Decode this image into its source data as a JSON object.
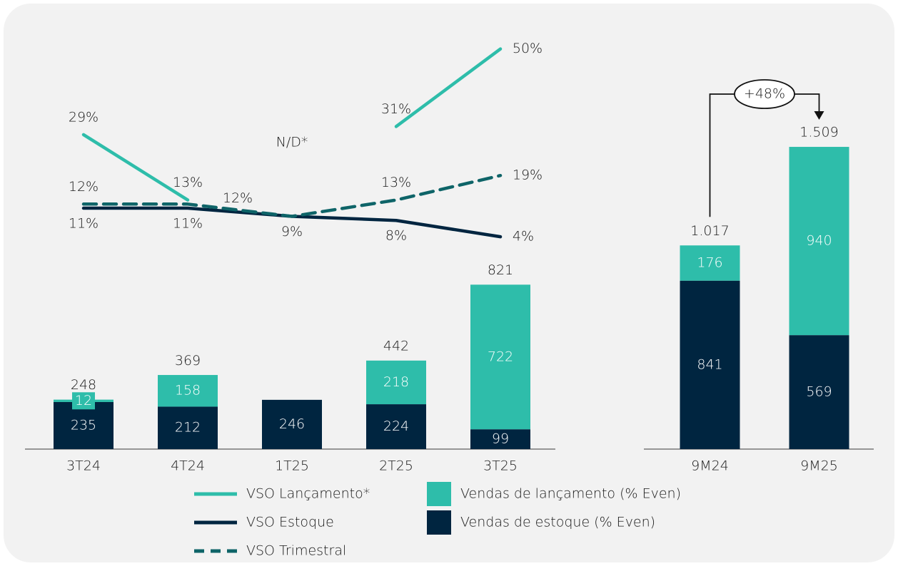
{
  "chart_data": [
    {
      "type": "bar_line",
      "categories": [
        "3T24",
        "4T24",
        "1T25",
        "2T25",
        "3T25"
      ],
      "ylim": [
        0,
        2100
      ],
      "y2lim": [
        -48,
        55
      ],
      "series": [
        {
          "name": "Vendas de estoque (% Even)",
          "type": "bar",
          "color": "#002540",
          "values": [
            235,
            212,
            246,
            224,
            99
          ]
        },
        {
          "name": "Vendas de lançamento (% Even)",
          "type": "bar",
          "color": "#2ebdaa",
          "values": [
            12,
            158,
            null,
            218,
            722
          ]
        },
        {
          "name": "VSO Lançamento*",
          "type": "line",
          "axis": "y2",
          "color": "#2ebdaa",
          "dash": false,
          "values": [
            29,
            13,
            null,
            31,
            50
          ],
          "value_labels": [
            "29%",
            "13%",
            "N/D*",
            "31%",
            "50%"
          ]
        },
        {
          "name": "VSO Estoque",
          "type": "line",
          "axis": "y2",
          "color": "#002540",
          "dash": false,
          "values": [
            11,
            11,
            9,
            8,
            4
          ],
          "value_labels": [
            "11%",
            "11%",
            "9%",
            "8%",
            "4%"
          ]
        },
        {
          "name": "VSO Trimestral",
          "type": "line",
          "axis": "y2",
          "color": "#0e6468",
          "dash": true,
          "values": [
            12,
            12,
            9,
            13,
            19
          ],
          "value_labels": [
            "12%",
            "12%",
            null,
            "13%",
            "19%"
          ]
        }
      ],
      "totals": [
        248,
        369,
        null,
        442,
        821
      ]
    },
    {
      "type": "bar",
      "categories": [
        "9M24",
        "9M25"
      ],
      "ylim": [
        0,
        2100
      ],
      "series": [
        {
          "type": "bar",
          "color": "#002540",
          "values": [
            841,
            569
          ]
        },
        {
          "type": "bar",
          "color": "#2ebdaa",
          "values": [
            176,
            940
          ]
        }
      ],
      "totals": [
        1017,
        1509
      ],
      "total_labels": [
        "1.017",
        "1.509"
      ],
      "annotation": "+48%"
    }
  ]
}
